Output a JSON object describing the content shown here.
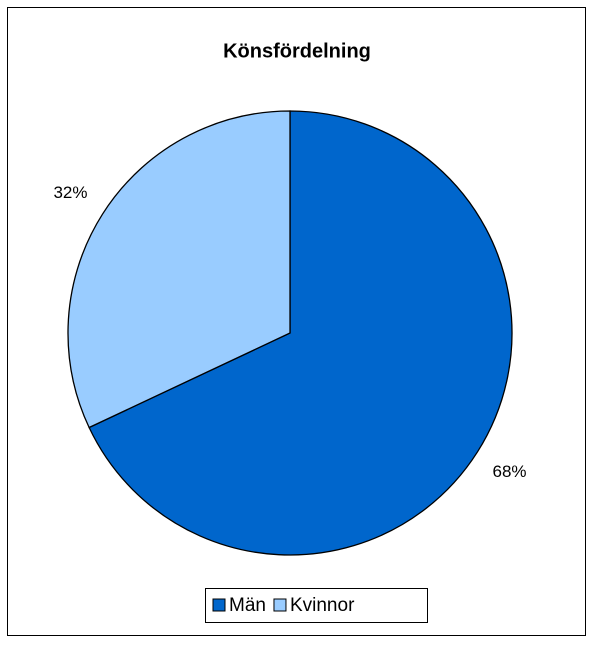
{
  "chart_data": {
    "type": "pie",
    "title": "Könsfördelning",
    "categories": [
      "Män",
      "Kvinnor"
    ],
    "values": [
      68,
      32
    ],
    "value_labels": [
      "68%",
      "32%"
    ],
    "colors": [
      "#0066cc",
      "#99ccff"
    ],
    "legend": "bottom"
  }
}
